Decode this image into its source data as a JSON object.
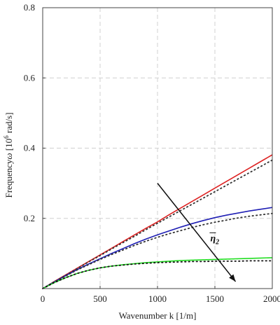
{
  "chart_data": {
    "type": "line",
    "xlabel": "Wavenumber k [1/m]",
    "ylabel_prefix": "Frequency",
    "ylabel_symbol": "ω",
    "ylabel_units_pre": " [10",
    "ylabel_exp": "6",
    "ylabel_units_post": " rad/s]",
    "xlim": [
      0,
      2000
    ],
    "ylim": [
      0,
      0.8
    ],
    "x_ticks": [
      0,
      500,
      1000,
      1500,
      2000
    ],
    "x_tick_labels": [
      "0",
      "500",
      "1000",
      "1500",
      "2000"
    ],
    "y_ticks": [
      0.2,
      0.4,
      0.6,
      0.8
    ],
    "y_tick_labels": [
      "0.2",
      "0.4",
      "0.6",
      "0.8"
    ],
    "grid": true,
    "x": [
      0,
      100,
      200,
      300,
      400,
      500,
      600,
      700,
      800,
      900,
      1000,
      1100,
      1200,
      1300,
      1400,
      1500,
      1600,
      1700,
      1800,
      1900,
      2000
    ],
    "series": [
      {
        "color": "#dd2222",
        "style": "solid",
        "values": [
          0,
          0.02,
          0.039,
          0.058,
          0.077,
          0.096,
          0.115,
          0.134,
          0.153,
          0.172,
          0.19,
          0.21,
          0.229,
          0.248,
          0.267,
          0.286,
          0.305,
          0.324,
          0.343,
          0.362,
          0.381
        ]
      },
      {
        "color": "#333333",
        "style": "dotted",
        "values": [
          0,
          0.019,
          0.038,
          0.057,
          0.076,
          0.094,
          0.113,
          0.131,
          0.149,
          0.168,
          0.186,
          0.204,
          0.222,
          0.24,
          0.258,
          0.276,
          0.294,
          0.312,
          0.33,
          0.348,
          0.366
        ]
      },
      {
        "color": "#1f1fb4",
        "style": "solid",
        "values": [
          0,
          0.019,
          0.037,
          0.054,
          0.07,
          0.085,
          0.1,
          0.114,
          0.128,
          0.141,
          0.153,
          0.164,
          0.175,
          0.185,
          0.194,
          0.202,
          0.209,
          0.215,
          0.221,
          0.226,
          0.231
        ]
      },
      {
        "color": "#333333",
        "style": "dotted",
        "values": [
          0,
          0.019,
          0.036,
          0.053,
          0.068,
          0.083,
          0.097,
          0.11,
          0.123,
          0.135,
          0.146,
          0.156,
          0.165,
          0.174,
          0.182,
          0.189,
          0.195,
          0.201,
          0.206,
          0.21,
          0.214
        ]
      },
      {
        "color": "#22dd22",
        "style": "solid",
        "values": [
          0,
          0.017,
          0.031,
          0.043,
          0.052,
          0.059,
          0.064,
          0.068,
          0.071,
          0.074,
          0.076,
          0.078,
          0.08,
          0.081,
          0.082,
          0.083,
          0.084,
          0.085,
          0.086,
          0.087,
          0.088
        ]
      },
      {
        "color": "#111111",
        "style": "dotted",
        "values": [
          0,
          0.017,
          0.031,
          0.043,
          0.052,
          0.059,
          0.064,
          0.067,
          0.07,
          0.072,
          0.074,
          0.075,
          0.076,
          0.077,
          0.077,
          0.078,
          0.078,
          0.078,
          0.079,
          0.079,
          0.079
        ]
      }
    ],
    "annotation": {
      "label": "η",
      "subscript": "2",
      "arrow_from": [
        1000,
        0.3
      ],
      "arrow_to": [
        1680,
        0.02
      ]
    }
  }
}
